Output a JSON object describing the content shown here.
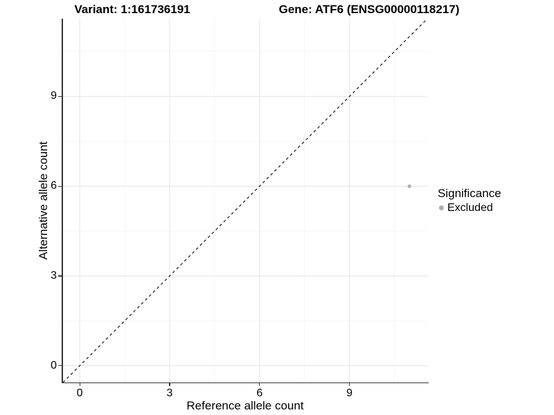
{
  "figure": {
    "title_left": "Variant: 1:161736191",
    "title_right": "Gene: ATF6 (ENSG00000118217)"
  },
  "legend": {
    "title": "Significance",
    "items": [
      {
        "label": "Excluded",
        "color": "#adadad"
      }
    ]
  },
  "chart_data": {
    "type": "scatter",
    "title": "Variant: 1:161736191  |  Gene: ATF6 (ENSG00000118217)",
    "xlabel": "Reference allele count",
    "ylabel": "Alternative allele count",
    "xlim": [
      -0.58,
      11.62
    ],
    "ylim": [
      -0.56,
      11.6
    ],
    "x_ticks": [
      0,
      3,
      6,
      9
    ],
    "y_ticks": [
      0,
      3,
      6,
      9
    ],
    "x_minor_ticks": [
      1.5,
      4.5,
      7.5,
      10.5
    ],
    "y_minor_ticks": [
      1.5,
      4.5,
      7.5,
      10.5
    ],
    "grid": true,
    "legend_title": "Significance",
    "legend_position": "right",
    "reference_line": {
      "kind": "identity",
      "slope": 1,
      "intercept": 0,
      "style": "dashed",
      "color": "#111111"
    },
    "series": [
      {
        "name": "Excluded",
        "color": "#adadad",
        "points": [
          {
            "x": 11,
            "y": 6
          }
        ]
      }
    ],
    "colors": {
      "grid_major": "#e8e8e8",
      "grid_minor": "#f3f3f3",
      "axis_line": "#333333",
      "background": "#ffffff"
    }
  }
}
